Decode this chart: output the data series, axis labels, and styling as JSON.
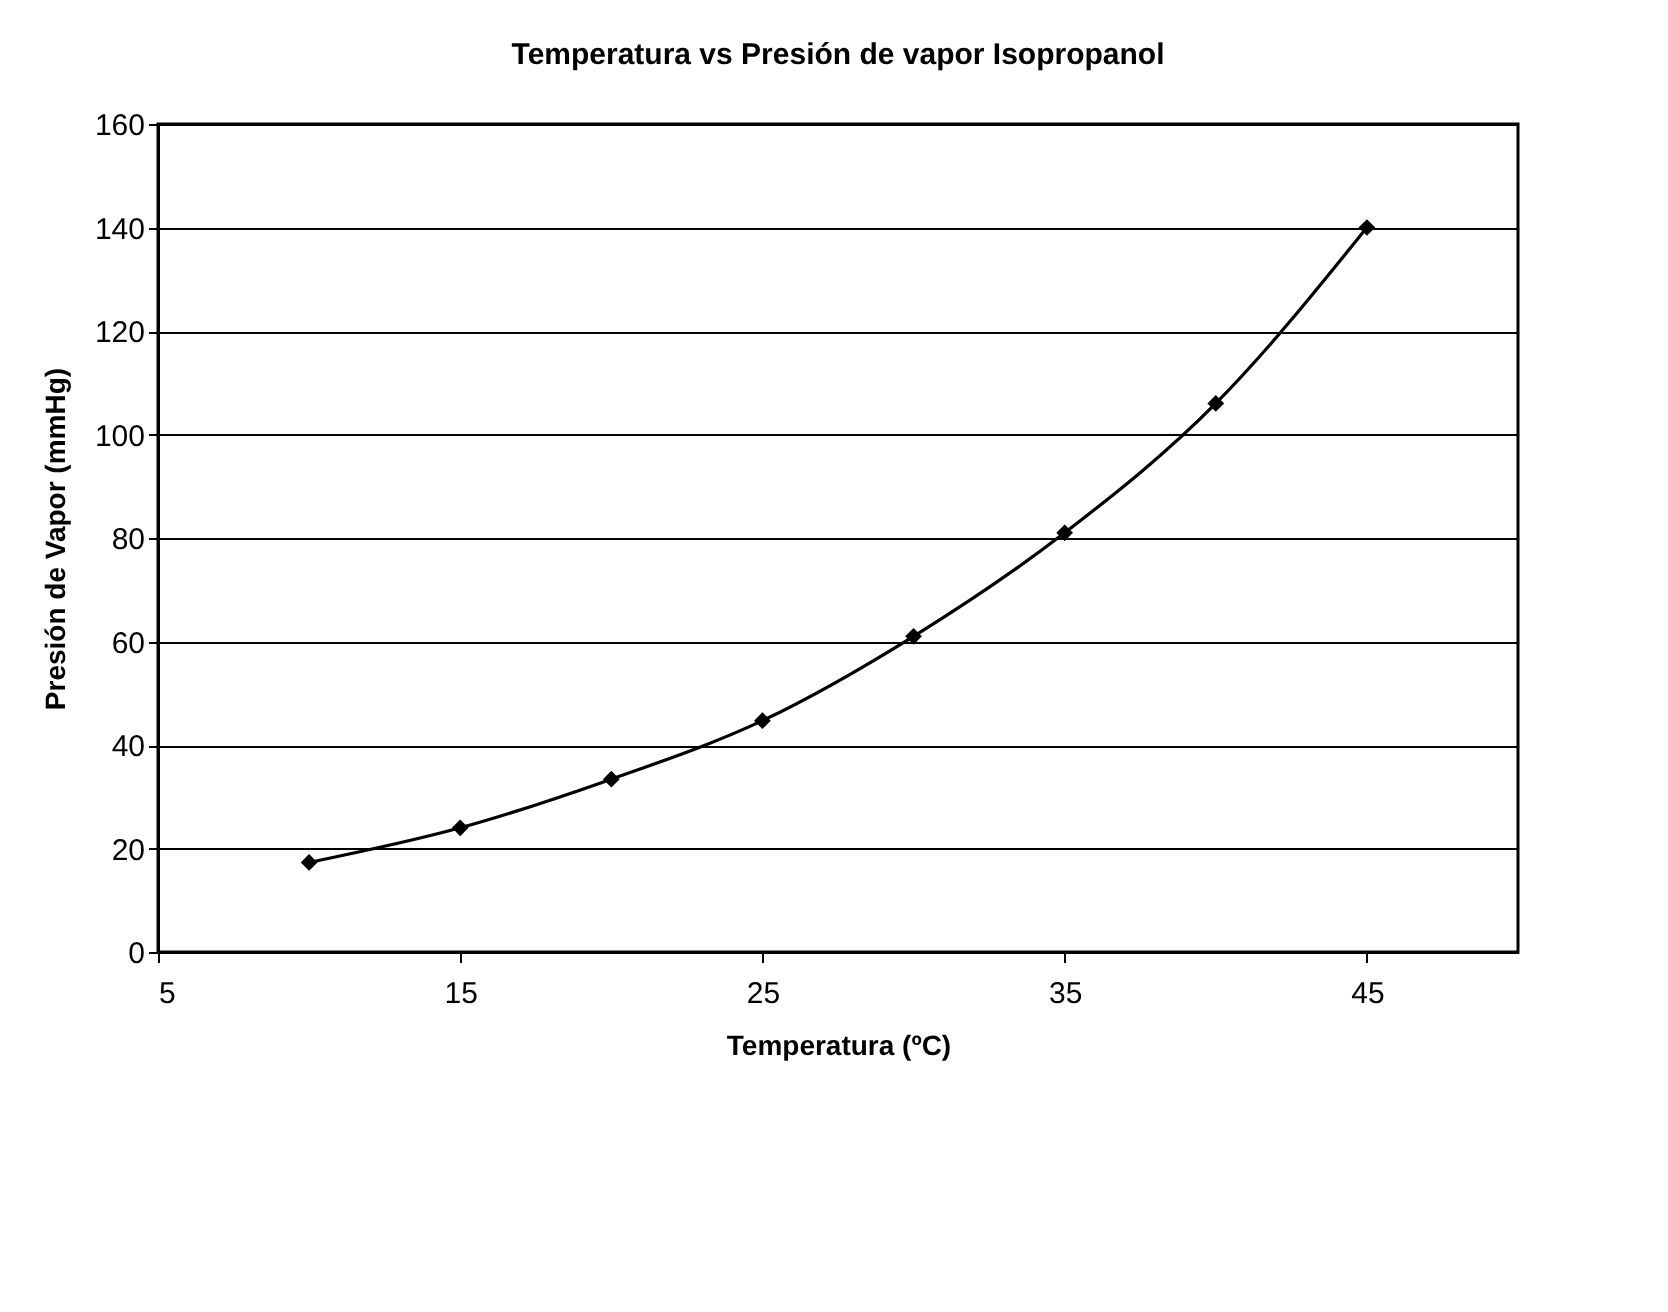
{
  "chart_data": {
    "type": "line",
    "title": "Temperatura vs Presión de vapor Isopropanol",
    "xlabel": "Temperatura (ºC)",
    "ylabel": "Presión de Vapor (mmHg)",
    "x": [
      10,
      15,
      20,
      25,
      30,
      35,
      40,
      45
    ],
    "series": [
      {
        "color": "#000000",
        "values": [
          17.3,
          24,
          33.4,
          44.7,
          61,
          81,
          106,
          140
        ]
      }
    ],
    "xlim": [
      5,
      50
    ],
    "xticks": [
      5,
      15,
      25,
      35,
      45
    ],
    "ylim": [
      0,
      160
    ],
    "yticks": [
      0,
      20,
      40,
      60,
      80,
      100,
      120,
      140,
      160
    ],
    "grid": "y",
    "marker": "diamond",
    "line_style": "solid"
  }
}
